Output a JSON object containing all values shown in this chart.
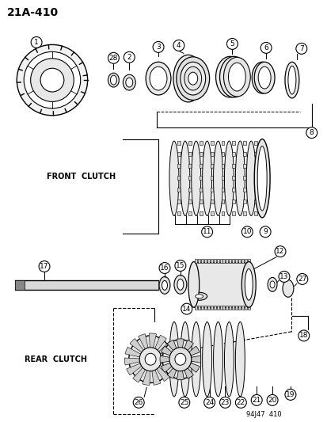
{
  "title": "21A-410",
  "watermark": "94J47  410",
  "bg_color": "#ffffff",
  "line_color": "#000000",
  "label_front_clutch": "FRONT  CLUTCH",
  "label_rear_clutch": "REAR  CLUTCH",
  "figsize": [
    4.14,
    5.33
  ],
  "dpi": 100
}
